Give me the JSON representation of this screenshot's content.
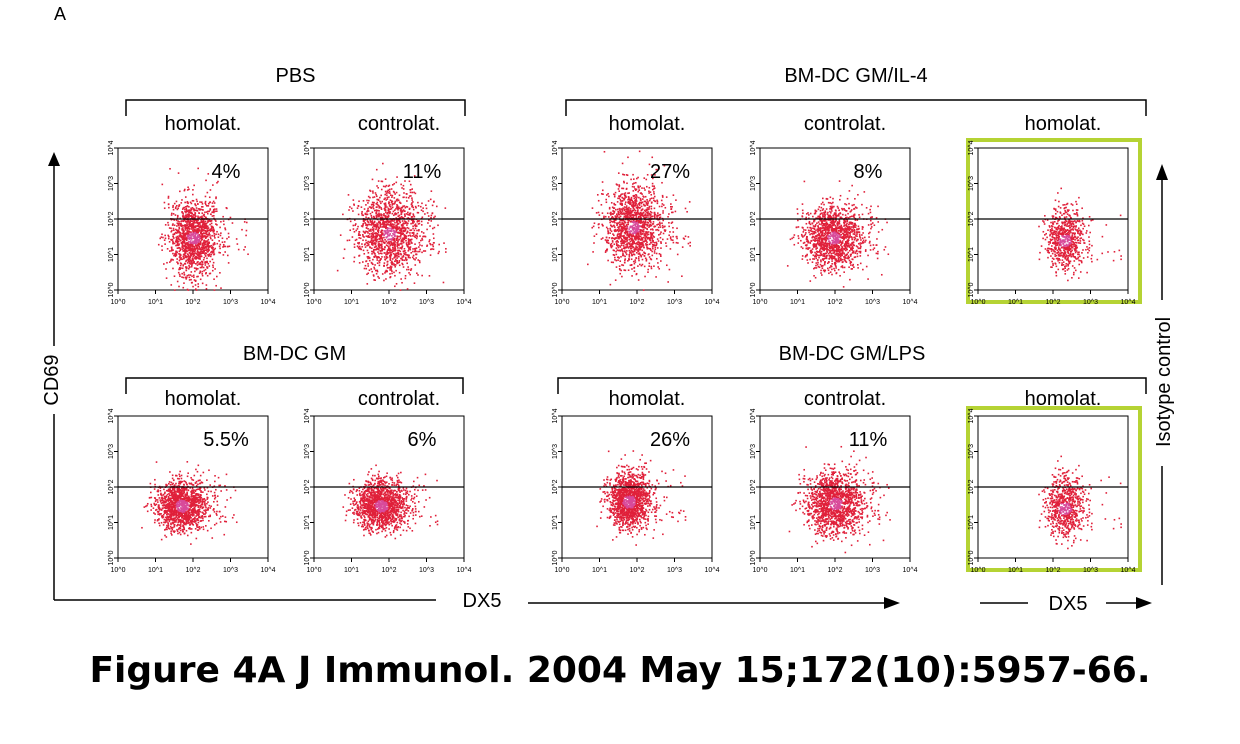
{
  "panel_letter": "A",
  "caption": "Figure 4A J Immunol. 2004 May 15;172(10):5957-66.",
  "colors": {
    "dot": "#e0203a",
    "dot_core": "#d84a9a",
    "highlight": "#b5d334",
    "line": "#000000"
  },
  "chart_data": {
    "type": "scatter",
    "title": "",
    "xlabel": "DX5",
    "ylabel": "CD69",
    "right_label": "Isotype control",
    "right_xlabel": "DX5",
    "axis_ticks": [
      "10^0",
      "10^1",
      "10^2",
      "10^3",
      "10^4"
    ],
    "xlim": [
      1,
      10000
    ],
    "ylim": [
      1,
      10000
    ],
    "gate_y": 100,
    "groups": [
      {
        "label": "PBS",
        "row": 0,
        "panels": [
          {
            "label": "homolat.",
            "percent": "4%",
            "cx": 100,
            "cy": 30,
            "sx": 0.32,
            "sy": 0.55,
            "isotype": false
          },
          {
            "label": "controlat.",
            "percent": "11%",
            "cx": 100,
            "cy": 40,
            "sx": 0.45,
            "sy": 0.6,
            "isotype": false
          }
        ]
      },
      {
        "label": "BM-DC GM/IL-4",
        "row": 0,
        "panels": [
          {
            "label": "homolat.",
            "percent": "27%",
            "cx": 80,
            "cy": 60,
            "sx": 0.4,
            "sy": 0.6,
            "isotype": false
          },
          {
            "label": "controlat.",
            "percent": "8%",
            "cx": 90,
            "cy": 30,
            "sx": 0.4,
            "sy": 0.45,
            "isotype": false
          },
          {
            "label": "homolat.",
            "percent": "",
            "cx": 200,
            "cy": 25,
            "sx": 0.25,
            "sy": 0.45,
            "isotype": true
          }
        ]
      },
      {
        "label": "BM-DC GM",
        "row": 1,
        "panels": [
          {
            "label": "homolat.",
            "percent": "5.5%",
            "cx": 50,
            "cy": 30,
            "sx": 0.35,
            "sy": 0.35,
            "isotype": false
          },
          {
            "label": "controlat.",
            "percent": "6%",
            "cx": 60,
            "cy": 30,
            "sx": 0.35,
            "sy": 0.35,
            "isotype": false
          }
        ]
      },
      {
        "label": "BM-DC GM/LPS",
        "row": 1,
        "panels": [
          {
            "label": "homolat.",
            "percent": "26%",
            "cx": 60,
            "cy": 40,
            "sx": 0.28,
            "sy": 0.4,
            "isotype": false
          },
          {
            "label": "controlat.",
            "percent": "11%",
            "cx": 100,
            "cy": 35,
            "sx": 0.4,
            "sy": 0.45,
            "isotype": false
          },
          {
            "label": "homolat.",
            "percent": "",
            "cx": 200,
            "cy": 25,
            "sx": 0.25,
            "sy": 0.45,
            "isotype": true
          }
        ]
      }
    ]
  }
}
